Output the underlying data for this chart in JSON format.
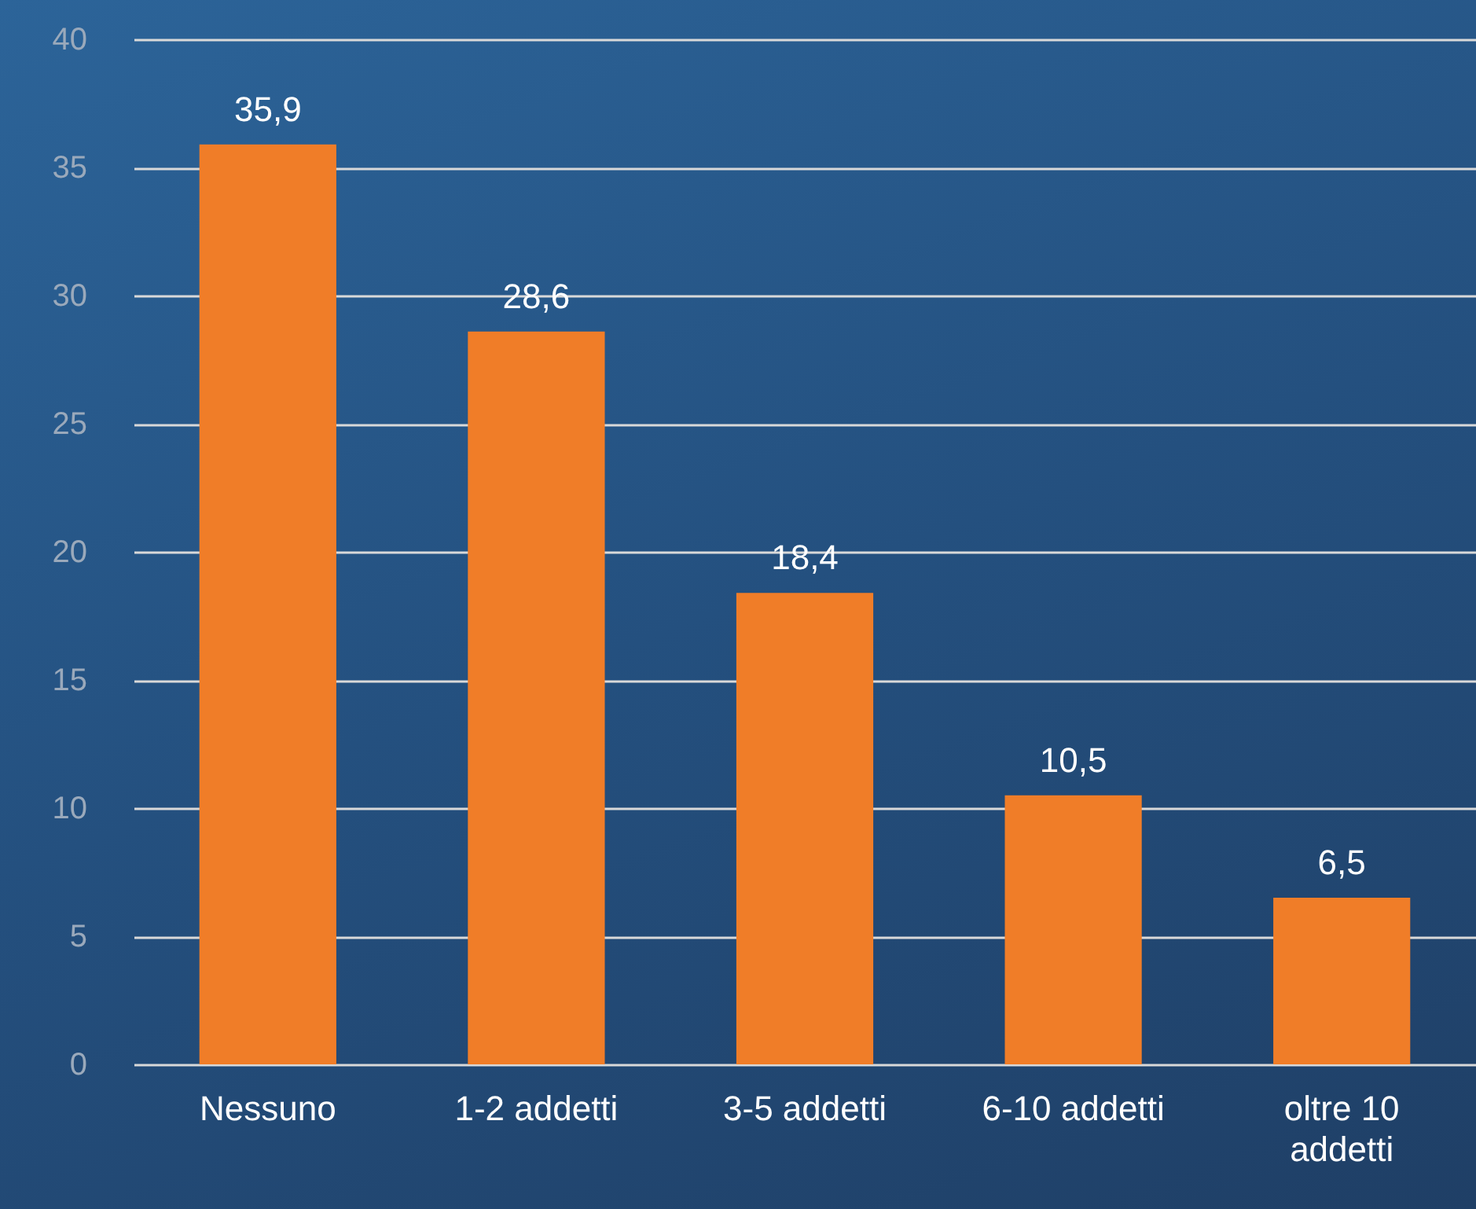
{
  "chart_data": {
    "type": "bar",
    "categories": [
      "Nessuno",
      "1-2 addetti",
      "3-5 addetti",
      "6-10 addetti",
      "oltre 10 addetti"
    ],
    "values": [
      35.9,
      28.6,
      18.4,
      10.5,
      6.5
    ],
    "value_labels": [
      "35,9",
      "28,6",
      "18,4",
      "10,5",
      "6,5"
    ],
    "color": "#f07d28",
    "ylim": [
      0,
      40
    ],
    "yticks": [
      0,
      5,
      10,
      15,
      20,
      25,
      30,
      35,
      40
    ],
    "grid": "y"
  }
}
